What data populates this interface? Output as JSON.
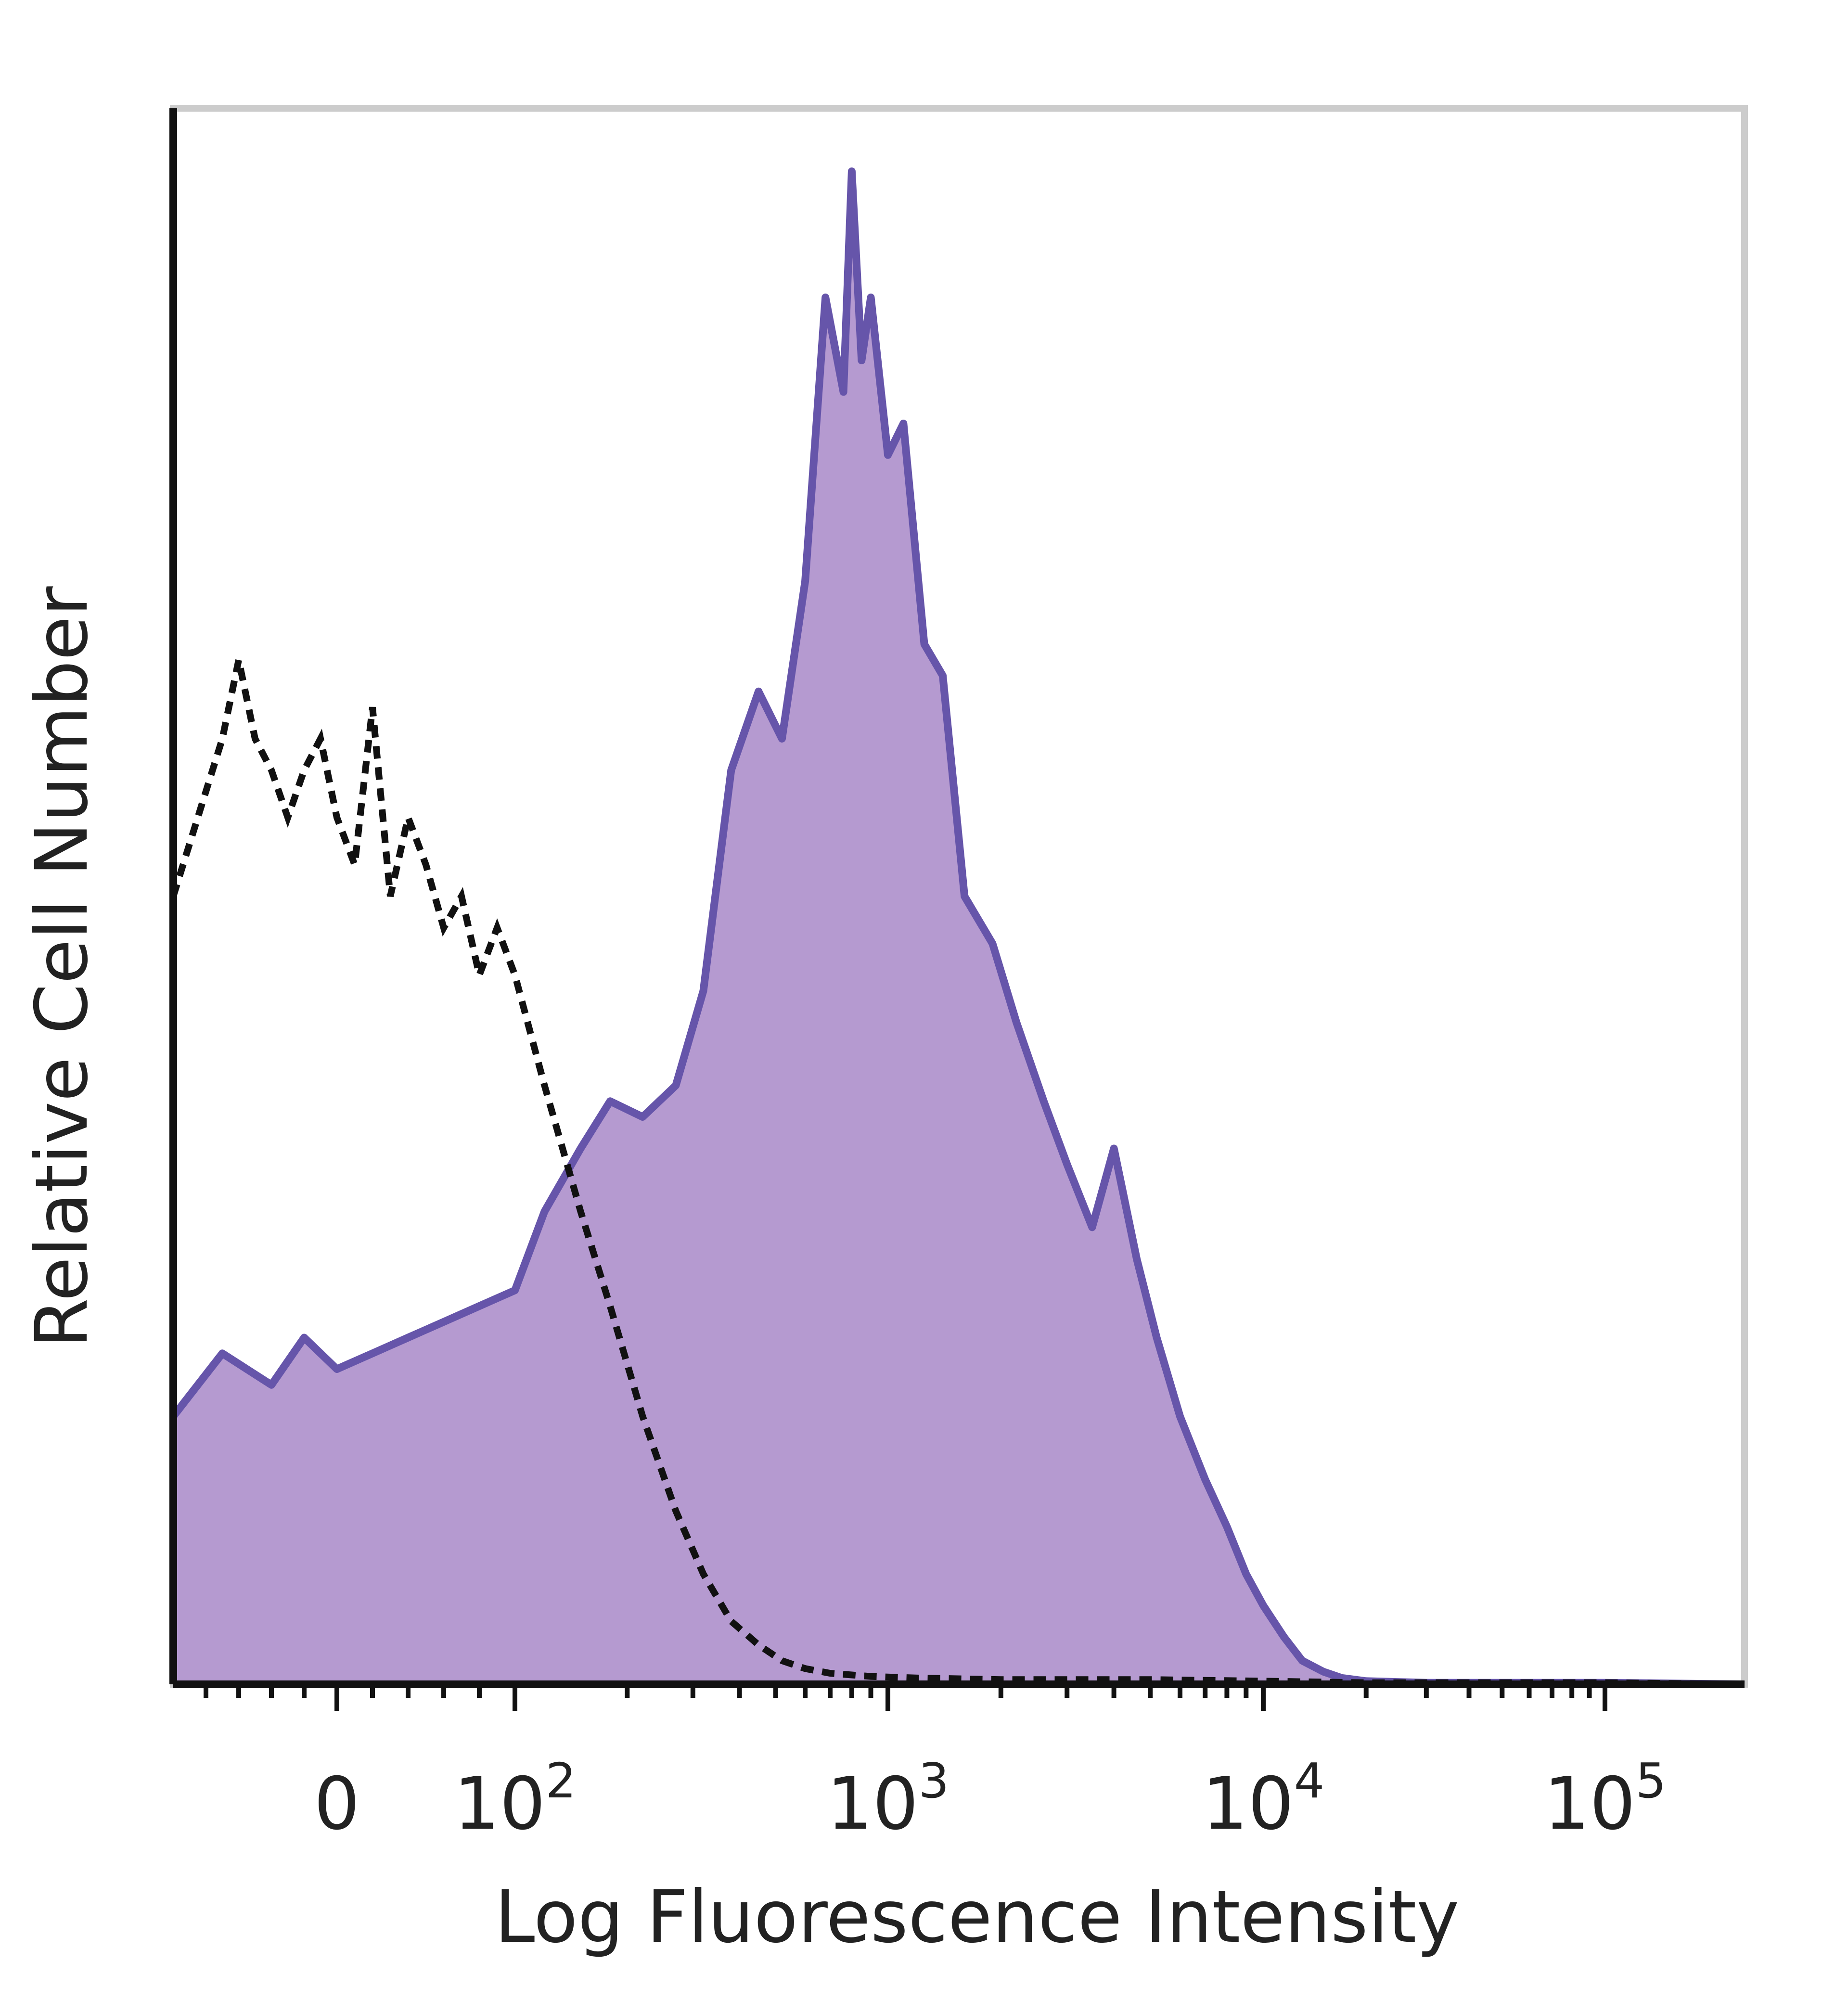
{
  "chart_data": {
    "type": "area",
    "title": "",
    "xlabel": "Log Fluorescence Intensity",
    "ylabel": "Relative Cell Number",
    "x_scale": "log (biexponential)",
    "xlim": [
      -100,
      200000
    ],
    "ylim": [
      0,
      100
    ],
    "grid": false,
    "legend": "none",
    "x_ticks": [
      {
        "value": 0,
        "base": "0",
        "exponent": ""
      },
      {
        "value": 100,
        "base": "10",
        "exponent": "2"
      },
      {
        "value": 1000,
        "base": "10",
        "exponent": "3"
      },
      {
        "value": 10000,
        "base": "10",
        "exponent": "4"
      },
      {
        "value": 100000,
        "base": "10",
        "exponent": "5"
      }
    ],
    "colors": {
      "stained_fill": "#b59ad0",
      "stained_line": "#6655aa",
      "control_line": "#111111",
      "axis": "#111111",
      "frame": "#cccccc"
    },
    "series": [
      {
        "style": "filled",
        "x": [
          -100,
          -70,
          -40,
          -20,
          0,
          20,
          40,
          60,
          80,
          100,
          120,
          150,
          180,
          220,
          270,
          320,
          380,
          450,
          520,
          600,
          680,
          760,
          800,
          850,
          900,
          1000,
          1100,
          1250,
          1400,
          1600,
          1900,
          2200,
          2600,
          3000,
          3500,
          4000,
          4600,
          5200,
          6000,
          7000,
          8000,
          9000,
          10000,
          11500,
          13000,
          15000,
          17000,
          20000,
          30000,
          50000,
          100000,
          200000
        ],
        "y": [
          17,
          21,
          19,
          22,
          20,
          21,
          22,
          23,
          24,
          25,
          30,
          34,
          37,
          36,
          38,
          44,
          58,
          63,
          60,
          70,
          88,
          82,
          96,
          84,
          88,
          78,
          80,
          66,
          64,
          50,
          47,
          42,
          37,
          33,
          29,
          34,
          27,
          22,
          17,
          13,
          10,
          7,
          5,
          3,
          1.5,
          0.8,
          0.4,
          0.2,
          0.1,
          0.1,
          0.1,
          0
        ]
      },
      {
        "style": "dashed",
        "x": [
          -100,
          -85,
          -70,
          -60,
          -50,
          -40,
          -30,
          -20,
          -10,
          0,
          10,
          20,
          30,
          40,
          50,
          60,
          70,
          80,
          90,
          100,
          120,
          150,
          180,
          220,
          270,
          320,
          380,
          450,
          520,
          600,
          700,
          900,
          1200,
          2000,
          5000,
          10000,
          20000,
          100000,
          200000
        ],
        "y": [
          50,
          55,
          60,
          65,
          60,
          58,
          55,
          58,
          60,
          55,
          52,
          62,
          50,
          55,
          52,
          48,
          50,
          45,
          48,
          45,
          38,
          30,
          24,
          17,
          11,
          7,
          4,
          2.5,
          1.5,
          1,
          0.7,
          0.5,
          0.4,
          0.3,
          0.3,
          0.2,
          0.1,
          0.1,
          0
        ]
      }
    ]
  }
}
